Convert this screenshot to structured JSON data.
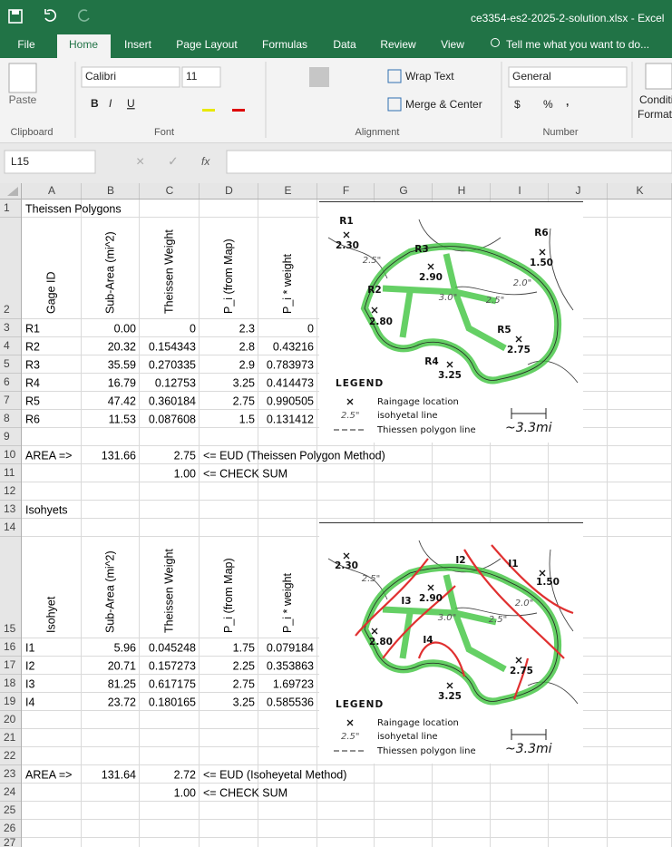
{
  "window": {
    "title": "ce3354-es2-2025-2-solution.xlsx - Excel"
  },
  "tabs": [
    "File",
    "Home",
    "Insert",
    "Page Layout",
    "Formulas",
    "Data",
    "Review",
    "View"
  ],
  "tell_me": "Tell me what you want to do...",
  "ribbon": {
    "clipboard": {
      "paste": "Paste",
      "label": "Clipboard"
    },
    "font": {
      "name": "Calibri",
      "size": "11",
      "bold": "B",
      "italic": "I",
      "underline": "U",
      "label": "Font"
    },
    "alignment": {
      "wrap_text": "Wrap Text",
      "merge_center": "Merge & Center",
      "label": "Alignment"
    },
    "number": {
      "format": "General",
      "currency": "$",
      "percent": "%",
      "comma": ",",
      "label": "Number"
    },
    "styles": {
      "conditional": "Conditi",
      "format": "Format"
    }
  },
  "formula_bar": {
    "name_box": "L15",
    "fx": "fx"
  },
  "columns": [
    "A",
    "B",
    "C",
    "D",
    "E",
    "F",
    "G",
    "H",
    "I",
    "J",
    "K"
  ],
  "rows": [
    1,
    2,
    3,
    4,
    5,
    6,
    7,
    8,
    9,
    10,
    11,
    12,
    13,
    14,
    15,
    16,
    17,
    18,
    19,
    20,
    21,
    22,
    23,
    24,
    25,
    26,
    27
  ],
  "cells": {
    "A1": "Theissen Polygons",
    "A2": "Gage ID",
    "B2": "Sub-Area (mi^2)",
    "C2": "Theissen Weight",
    "D2": "P_i (from Map)",
    "E2": "P_i * weight",
    "A3": "R1",
    "B3": "0.00",
    "C3": "0",
    "D3": "2.3",
    "E3": "0",
    "A4": "R2",
    "B4": "20.32",
    "C4": "0.154343",
    "D4": "2.8",
    "E4": "0.43216",
    "A5": "R3",
    "B5": "35.59",
    "C5": "0.270335",
    "D5": "2.9",
    "E5": "0.783973",
    "A6": "R4",
    "B6": "16.79",
    "C6": "0.12753",
    "D6": "3.25",
    "E6": "0.414473",
    "A7": "R5",
    "B7": "47.42",
    "C7": "0.360184",
    "D7": "2.75",
    "E7": "0.990505",
    "A8": "R6",
    "B8": "11.53",
    "C8": "0.087608",
    "D8": "1.5",
    "E8": "0.131412",
    "A10": "AREA =>",
    "B10": "131.66",
    "C10": "2.75",
    "D10": "<= EUD (Theissen Polygon Method)",
    "C11": "1.00",
    "D11": "<= CHECK SUM",
    "A13": "Isohyets",
    "A15": "Isohyet",
    "B15": "Sub-Area (mi^2)",
    "C15": "Theissen Weight",
    "D15": "P_i (from Map)",
    "E15": "P_i * weight",
    "A16": "I1",
    "B16": "5.96",
    "C16": "0.045248",
    "D16": "1.75",
    "E16": "0.079184",
    "A17": "I2",
    "B17": "20.71",
    "C17": "0.157273",
    "D17": "2.25",
    "E17": "0.353863",
    "A18": "I3",
    "B18": "81.25",
    "C18": "0.617175",
    "D18": "2.75",
    "E18": "1.69723",
    "A19": "I4",
    "B19": "23.72",
    "C19": "0.180165",
    "D19": "3.25",
    "E19": "0.585536",
    "A23": "AREA =>",
    "B23": "131.64",
    "C23": "2.72",
    "D23": "<= EUD (Isoheyetal Method)",
    "C24": "1.00",
    "D24": "<= CHECK SUM"
  },
  "images": [
    {
      "labels": [
        "R1",
        "2.30",
        "R3",
        "2.90",
        "R2",
        "2.80",
        "R6",
        "1.50",
        "R5",
        "2.75",
        "R4",
        "3.25",
        "2.5\"",
        "3.0\"",
        "2.5\"",
        "2.0\""
      ],
      "legend": {
        "title": "LEGEND",
        "raingage": "Raingage location",
        "isohyet_sample": "2.5\"",
        "isohyet": "isohyetal line",
        "polygon": "Thiessen polygon line",
        "scale": "~3.3mi"
      }
    },
    {
      "labels": [
        "2.30",
        "I2",
        "I1",
        "1.50",
        "I3",
        "2.90",
        "2.80",
        "I4",
        "2.75",
        "3.25",
        "2.5\"",
        "3.0\"",
        "2.0\"",
        "2.5\""
      ],
      "legend": {
        "title": "LEGEND",
        "raingage": "Raingage location",
        "isohyet_sample": "2.5\"",
        "isohyet": "isohyetal line",
        "polygon": "Thiessen polygon line",
        "scale": "~3.3mi"
      }
    }
  ]
}
